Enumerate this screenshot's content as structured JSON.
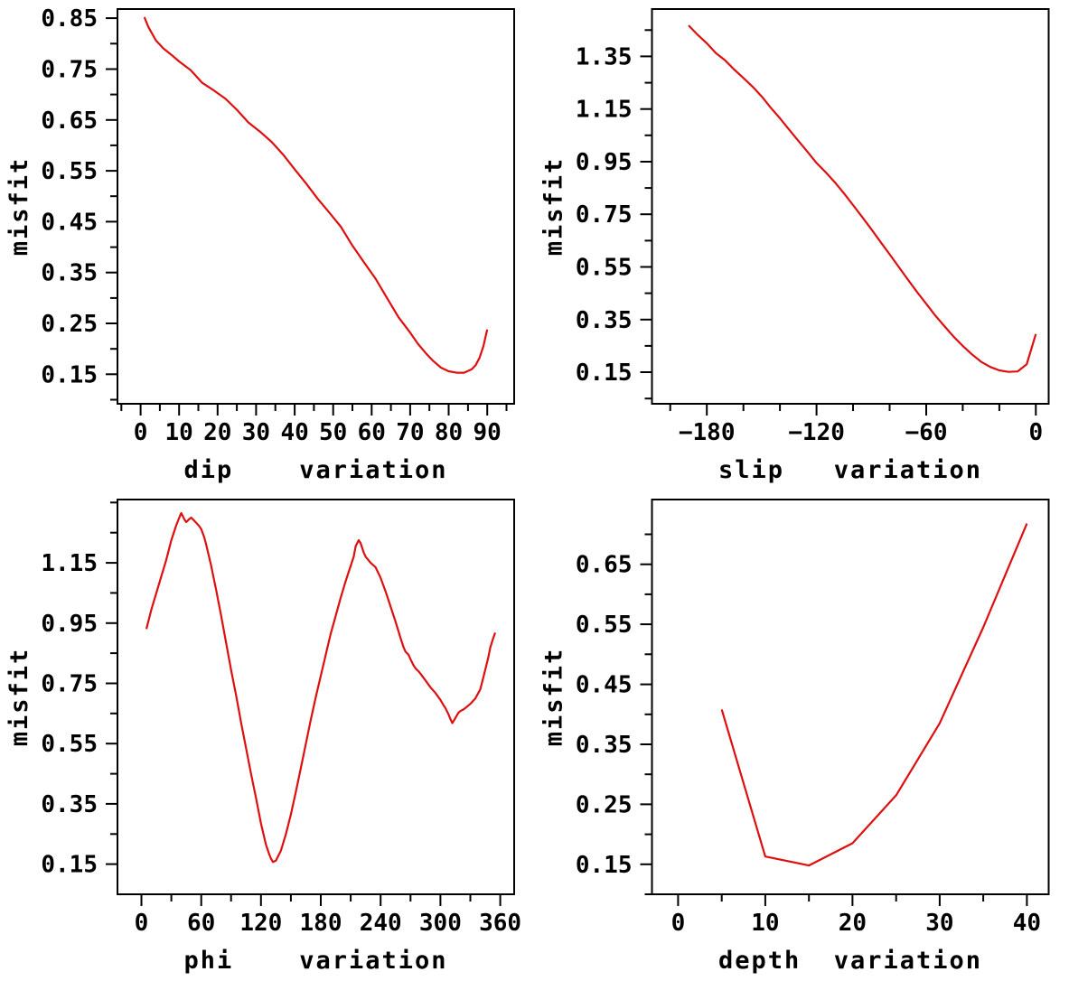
{
  "colors": {
    "line": "#dd0f0f",
    "axis": "#000000",
    "text": "#000000",
    "background": "#ffffff"
  },
  "chart_data": [
    {
      "id": "dip",
      "type": "line",
      "title": "",
      "xlabel": "dip    variation",
      "ylabel": "misfit",
      "xlim": [
        -6,
        97
      ],
      "ylim": [
        0.092,
        0.868
      ],
      "xticks": [
        {
          "v": 0,
          "l": "0"
        },
        {
          "v": 10,
          "l": "10"
        },
        {
          "v": 20,
          "l": "20"
        },
        {
          "v": 30,
          "l": "30"
        },
        {
          "v": 40,
          "l": "40"
        },
        {
          "v": 50,
          "l": "50"
        },
        {
          "v": 60,
          "l": "60"
        },
        {
          "v": 70,
          "l": "70"
        },
        {
          "v": 80,
          "l": "80"
        },
        {
          "v": 90,
          "l": "90"
        }
      ],
      "xminor": [
        -5,
        5,
        15,
        25,
        35,
        45,
        55,
        65,
        75,
        85,
        95
      ],
      "yticks": [
        {
          "v": 0.15,
          "l": "0.15"
        },
        {
          "v": 0.25,
          "l": "0.25"
        },
        {
          "v": 0.35,
          "l": "0.35"
        },
        {
          "v": 0.45,
          "l": "0.45"
        },
        {
          "v": 0.55,
          "l": "0.55"
        },
        {
          "v": 0.65,
          "l": "0.65"
        },
        {
          "v": 0.75,
          "l": "0.75"
        },
        {
          "v": 0.85,
          "l": "0.85"
        }
      ],
      "yminor": [
        0.1,
        0.2,
        0.3,
        0.4,
        0.5,
        0.6,
        0.7,
        0.8
      ],
      "x": [
        1,
        2,
        4,
        6,
        8,
        10,
        13,
        16,
        19,
        22,
        25,
        28,
        31,
        34,
        37,
        40,
        43,
        46,
        49,
        52,
        55,
        58,
        61,
        64,
        67,
        70,
        72,
        74,
        76,
        78,
        80,
        82,
        84,
        86,
        87,
        88,
        89,
        90
      ],
      "y": [
        0.852,
        0.833,
        0.806,
        0.79,
        0.778,
        0.765,
        0.748,
        0.723,
        0.708,
        0.692,
        0.67,
        0.645,
        0.627,
        0.607,
        0.582,
        0.553,
        0.525,
        0.495,
        0.468,
        0.44,
        0.403,
        0.37,
        0.338,
        0.3,
        0.262,
        0.232,
        0.21,
        0.192,
        0.176,
        0.163,
        0.156,
        0.153,
        0.153,
        0.16,
        0.168,
        0.182,
        0.205,
        0.238
      ]
    },
    {
      "id": "slip",
      "type": "line",
      "title": "",
      "xlabel": "slip   variation",
      "ylabel": "misfit",
      "xlim": [
        -210,
        7
      ],
      "ylim": [
        0.03,
        1.53
      ],
      "xticks": [
        {
          "v": -180,
          "l": "−180"
        },
        {
          "v": -120,
          "l": "−120"
        },
        {
          "v": -60,
          "l": "−60"
        },
        {
          "v": 0,
          "l": "0"
        }
      ],
      "xminor": [
        -200,
        -160,
        -140,
        -100,
        -80,
        -40,
        -20
      ],
      "yticks": [
        {
          "v": 0.15,
          "l": "0.15"
        },
        {
          "v": 0.35,
          "l": "0.35"
        },
        {
          "v": 0.55,
          "l": "0.55"
        },
        {
          "v": 0.75,
          "l": "0.75"
        },
        {
          "v": 0.95,
          "l": "0.95"
        },
        {
          "v": 1.15,
          "l": "1.15"
        },
        {
          "v": 1.35,
          "l": "1.35"
        }
      ],
      "yminor": [
        0.05,
        0.25,
        0.45,
        0.65,
        0.85,
        1.05,
        1.25,
        1.45
      ],
      "x": [
        -190,
        -185,
        -180,
        -175,
        -170,
        -165,
        -160,
        -155,
        -150,
        -145,
        -140,
        -135,
        -130,
        -125,
        -120,
        -115,
        -110,
        -105,
        -100,
        -95,
        -90,
        -85,
        -80,
        -75,
        -70,
        -65,
        -60,
        -55,
        -50,
        -45,
        -40,
        -35,
        -30,
        -25,
        -20,
        -15,
        -10,
        -5,
        0
      ],
      "y": [
        1.468,
        1.432,
        1.4,
        1.362,
        1.335,
        1.3,
        1.268,
        1.235,
        1.198,
        1.155,
        1.115,
        1.072,
        1.03,
        0.988,
        0.945,
        0.91,
        0.872,
        0.83,
        0.785,
        0.74,
        0.693,
        0.645,
        0.598,
        0.55,
        0.502,
        0.455,
        0.41,
        0.365,
        0.325,
        0.285,
        0.25,
        0.218,
        0.19,
        0.17,
        0.157,
        0.151,
        0.153,
        0.18,
        0.295
      ]
    },
    {
      "id": "phi",
      "type": "line",
      "title": "",
      "xlabel": "phi    variation",
      "ylabel": "misfit",
      "xlim": [
        -24,
        374
      ],
      "ylim": [
        0.05,
        1.36
      ],
      "xticks": [
        {
          "v": 0,
          "l": "0"
        },
        {
          "v": 60,
          "l": "60"
        },
        {
          "v": 120,
          "l": "120"
        },
        {
          "v": 180,
          "l": "180"
        },
        {
          "v": 240,
          "l": "240"
        },
        {
          "v": 300,
          "l": "300"
        },
        {
          "v": 360,
          "l": "360"
        }
      ],
      "xminor": [
        30,
        90,
        150,
        210,
        270,
        330
      ],
      "yticks": [
        {
          "v": 0.15,
          "l": "0.15"
        },
        {
          "v": 0.35,
          "l": "0.35"
        },
        {
          "v": 0.55,
          "l": "0.55"
        },
        {
          "v": 0.75,
          "l": "0.75"
        },
        {
          "v": 0.95,
          "l": "0.95"
        },
        {
          "v": 1.15,
          "l": "1.15"
        }
      ],
      "yminor": [
        0.25,
        0.45,
        0.65,
        0.85,
        1.05,
        1.25,
        1.35
      ],
      "x": [
        5,
        10,
        15,
        20,
        25,
        30,
        35,
        38,
        40,
        43,
        45,
        48,
        50,
        53,
        55,
        58,
        60,
        63,
        65,
        70,
        75,
        80,
        85,
        90,
        95,
        100,
        105,
        110,
        115,
        120,
        125,
        128,
        130,
        132,
        135,
        140,
        145,
        150,
        155,
        160,
        165,
        170,
        175,
        180,
        185,
        190,
        195,
        200,
        205,
        210,
        213,
        215,
        218,
        220,
        223,
        225,
        230,
        235,
        240,
        245,
        250,
        255,
        260,
        263,
        265,
        268,
        270,
        273,
        275,
        278,
        280,
        285,
        290,
        295,
        300,
        303,
        305,
        308,
        310,
        312,
        315,
        318,
        320,
        323,
        325,
        330,
        335,
        340,
        345,
        348,
        350,
        353,
        355
      ],
      "y": [
        0.93,
        0.995,
        1.05,
        1.105,
        1.16,
        1.225,
        1.275,
        1.3,
        1.315,
        1.295,
        1.285,
        1.295,
        1.3,
        1.29,
        1.283,
        1.272,
        1.262,
        1.235,
        1.21,
        1.14,
        1.06,
        0.975,
        0.885,
        0.795,
        0.71,
        0.62,
        0.535,
        0.45,
        0.37,
        0.285,
        0.215,
        0.185,
        0.168,
        0.157,
        0.162,
        0.195,
        0.25,
        0.315,
        0.39,
        0.47,
        0.55,
        0.63,
        0.705,
        0.775,
        0.845,
        0.915,
        0.975,
        1.035,
        1.09,
        1.14,
        1.17,
        1.205,
        1.225,
        1.215,
        1.185,
        1.17,
        1.15,
        1.135,
        1.1,
        1.055,
        1.005,
        0.955,
        0.9,
        0.87,
        0.855,
        0.845,
        0.83,
        0.81,
        0.8,
        0.79,
        0.782,
        0.76,
        0.737,
        0.718,
        0.695,
        0.678,
        0.668,
        0.648,
        0.632,
        0.618,
        0.635,
        0.652,
        0.658,
        0.663,
        0.668,
        0.682,
        0.7,
        0.73,
        0.795,
        0.835,
        0.868,
        0.9,
        0.918
      ]
    },
    {
      "id": "depth",
      "type": "line",
      "title": "",
      "xlabel": "depth  variation",
      "ylabel": "misfit",
      "xlim": [
        -3,
        42.5
      ],
      "ylim": [
        0.1,
        0.758
      ],
      "xticks": [
        {
          "v": 0,
          "l": "0"
        },
        {
          "v": 10,
          "l": "10"
        },
        {
          "v": 20,
          "l": "20"
        },
        {
          "v": 30,
          "l": "30"
        },
        {
          "v": 40,
          "l": "40"
        }
      ],
      "xminor": [
        5,
        15,
        25,
        35
      ],
      "yticks": [
        {
          "v": 0.15,
          "l": "0.15"
        },
        {
          "v": 0.25,
          "l": "0.25"
        },
        {
          "v": 0.35,
          "l": "0.35"
        },
        {
          "v": 0.45,
          "l": "0.45"
        },
        {
          "v": 0.55,
          "l": "0.55"
        },
        {
          "v": 0.65,
          "l": "0.65"
        }
      ],
      "yminor": [
        0.1,
        0.2,
        0.3,
        0.4,
        0.5,
        0.6,
        0.7
      ],
      "x": [
        5,
        10,
        15,
        20,
        25,
        30,
        35,
        40
      ],
      "y": [
        0.408,
        0.163,
        0.148,
        0.185,
        0.265,
        0.385,
        0.545,
        0.718
      ]
    }
  ]
}
